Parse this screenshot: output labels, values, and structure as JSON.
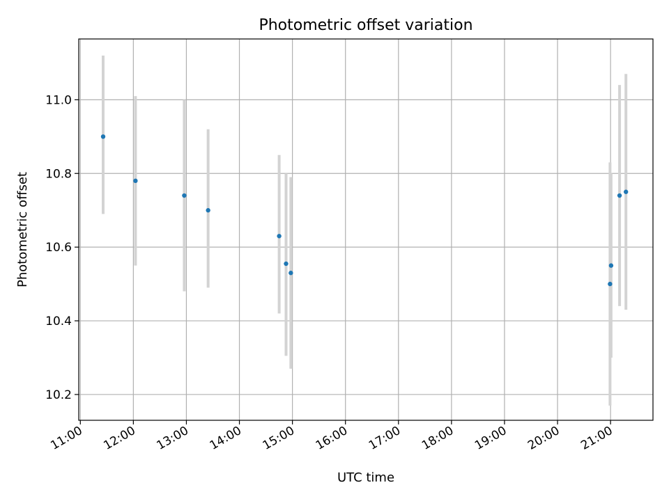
{
  "chart_data": {
    "type": "scatter",
    "title": "Photometric offset variation",
    "xlabel": "UTC time",
    "ylabel": "Photometric offset",
    "x_unit": "hours (UTC)",
    "xlim": [
      10.97,
      21.8
    ],
    "ylim": [
      10.13,
      11.165
    ],
    "x_ticks": [
      {
        "value": 11,
        "label": "11:00"
      },
      {
        "value": 12,
        "label": "12:00"
      },
      {
        "value": 13,
        "label": "13:00"
      },
      {
        "value": 14,
        "label": "14:00"
      },
      {
        "value": 15,
        "label": "15:00"
      },
      {
        "value": 16,
        "label": "16:00"
      },
      {
        "value": 17,
        "label": "17:00"
      },
      {
        "value": 18,
        "label": "18:00"
      },
      {
        "value": 19,
        "label": "19:00"
      },
      {
        "value": 20,
        "label": "20:00"
      },
      {
        "value": 21,
        "label": "21:00"
      }
    ],
    "y_ticks": [
      {
        "value": 10.2,
        "label": "10.2"
      },
      {
        "value": 10.4,
        "label": "10.4"
      },
      {
        "value": 10.6,
        "label": "10.6"
      },
      {
        "value": 10.8,
        "label": "10.8"
      },
      {
        "value": 11.0,
        "label": "11.0"
      }
    ],
    "grid": true,
    "marker_color": "#1f77b4",
    "errorbar_color": "#d3d3d3",
    "points": [
      {
        "x": 11.43,
        "y": 10.9,
        "ylow": 10.69,
        "yhigh": 11.12
      },
      {
        "x": 12.04,
        "y": 10.78,
        "ylow": 10.55,
        "yhigh": 11.01
      },
      {
        "x": 12.96,
        "y": 10.74,
        "ylow": 10.48,
        "yhigh": 11.0
      },
      {
        "x": 13.41,
        "y": 10.7,
        "ylow": 10.49,
        "yhigh": 10.92
      },
      {
        "x": 14.75,
        "y": 10.63,
        "ylow": 10.42,
        "yhigh": 10.85
      },
      {
        "x": 14.88,
        "y": 10.555,
        "ylow": 10.305,
        "yhigh": 10.8
      },
      {
        "x": 14.97,
        "y": 10.53,
        "ylow": 10.27,
        "yhigh": 10.79
      },
      {
        "x": 20.99,
        "y": 10.5,
        "ylow": 10.17,
        "yhigh": 10.83
      },
      {
        "x": 21.01,
        "y": 10.55,
        "ylow": 10.3,
        "yhigh": 10.8
      },
      {
        "x": 21.17,
        "y": 10.74,
        "ylow": 10.44,
        "yhigh": 11.04
      },
      {
        "x": 21.29,
        "y": 10.75,
        "ylow": 10.43,
        "yhigh": 11.07
      }
    ]
  }
}
